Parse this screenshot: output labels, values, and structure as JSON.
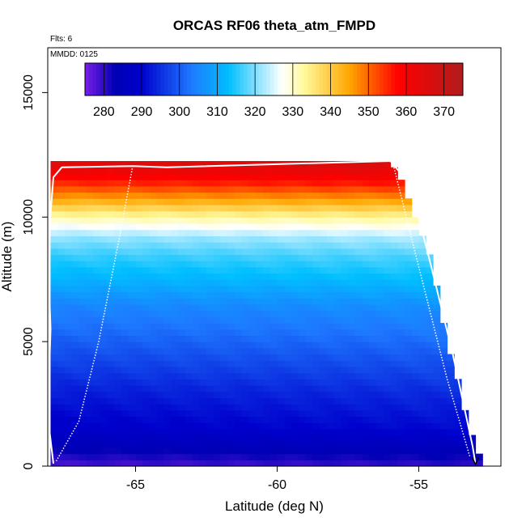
{
  "chart_data": {
    "type": "heatmap",
    "title": "ORCAS RF06 theta_atm_FMPD",
    "subtitle_flights": "Flts: 6",
    "subtitle_date": "MMDD: 0125",
    "xlabel": "Latitude (deg N)",
    "ylabel": "Altitude (m)",
    "xlim": [
      -68.1,
      -52.1
    ],
    "ylim": [
      0,
      16800
    ],
    "x_ticks": [
      -65,
      -60,
      -55
    ],
    "x_tick_labels": [
      "-65",
      "-60",
      "-55"
    ],
    "y_ticks": [
      0,
      5000,
      10000,
      15000
    ],
    "y_tick_labels": [
      "0",
      "5000",
      "10000",
      "15000"
    ],
    "colorbar": {
      "range": [
        275,
        375
      ],
      "ticks": [
        280,
        290,
        300,
        310,
        320,
        330,
        340,
        350,
        360,
        370
      ],
      "tick_labels": [
        "280",
        "290",
        "300",
        "310",
        "320",
        "330",
        "340",
        "350",
        "360",
        "370"
      ],
      "colors": [
        "#7a1fe6",
        "#0000b4",
        "#0000cd",
        "#1e78ff",
        "#00bfff",
        "#ffffff",
        "#fffa9c",
        "#ffa500",
        "#ff0000",
        "#b01c1c"
      ],
      "color_stops": [
        275,
        283,
        290,
        303,
        313,
        327,
        333,
        345,
        358,
        375
      ]
    },
    "field": {
      "lat_start": -68,
      "lat_end": -52.9,
      "lat_step": 0.25,
      "alt_step": 250,
      "upper_edge": [
        {
          "lat": -68.0,
          "alt": 12250
        },
        {
          "lat": -56.0,
          "alt": 12250
        },
        {
          "lat": -55.5,
          "alt": 11000
        },
        {
          "lat": -55.0,
          "alt": 9500
        },
        {
          "lat": -54.5,
          "alt": 8000
        },
        {
          "lat": -54.0,
          "alt": 5000
        },
        {
          "lat": -53.5,
          "alt": 2700
        },
        {
          "lat": -53.0,
          "alt": 500
        }
      ],
      "theta_profile": [
        {
          "alt": 0,
          "theta": 279
        },
        {
          "alt": 800,
          "theta": 285
        },
        {
          "alt": 1500,
          "theta": 290
        },
        {
          "alt": 3000,
          "theta": 294
        },
        {
          "alt": 5000,
          "theta": 301
        },
        {
          "alt": 6500,
          "theta": 306
        },
        {
          "alt": 7500,
          "theta": 312
        },
        {
          "alt": 8500,
          "theta": 317
        },
        {
          "alt": 9200,
          "theta": 322
        },
        {
          "alt": 9800,
          "theta": 330
        },
        {
          "alt": 10200,
          "theta": 336
        },
        {
          "alt": 10700,
          "theta": 345
        },
        {
          "alt": 11300,
          "theta": 355
        },
        {
          "alt": 12300,
          "theta": 368
        }
      ]
    },
    "flight_track": [
      {
        "lat": -67.9,
        "alt": 100
      },
      {
        "lat": -68.1,
        "alt": 2000
      },
      {
        "lat": -68.0,
        "alt": 5500
      },
      {
        "lat": -68.1,
        "alt": 8700
      },
      {
        "lat": -67.9,
        "alt": 11600
      },
      {
        "lat": -67.6,
        "alt": 12000
      },
      {
        "lat": -65.1,
        "alt": 12050
      },
      {
        "lat": -63.9,
        "alt": 12000
      },
      {
        "lat": -56.0,
        "alt": 12250
      },
      {
        "lat": -55.3,
        "alt": 11300
      },
      {
        "lat": -54.6,
        "alt": 8200
      },
      {
        "lat": -53.8,
        "alt": 4500
      },
      {
        "lat": -53.1,
        "alt": 800
      },
      {
        "lat": -53.0,
        "alt": 100
      }
    ],
    "flight_track_2": [
      {
        "lat": -67.8,
        "alt": 200
      },
      {
        "lat": -67.0,
        "alt": 1800
      },
      {
        "lat": -66.3,
        "alt": 5000
      },
      {
        "lat": -65.6,
        "alt": 9000
      },
      {
        "lat": -65.1,
        "alt": 12050
      }
    ],
    "flight_track_3": [
      {
        "lat": -55.9,
        "alt": 12100
      },
      {
        "lat": -55.0,
        "alt": 8000
      },
      {
        "lat": -54.0,
        "alt": 3500
      },
      {
        "lat": -53.2,
        "alt": 400
      }
    ]
  }
}
